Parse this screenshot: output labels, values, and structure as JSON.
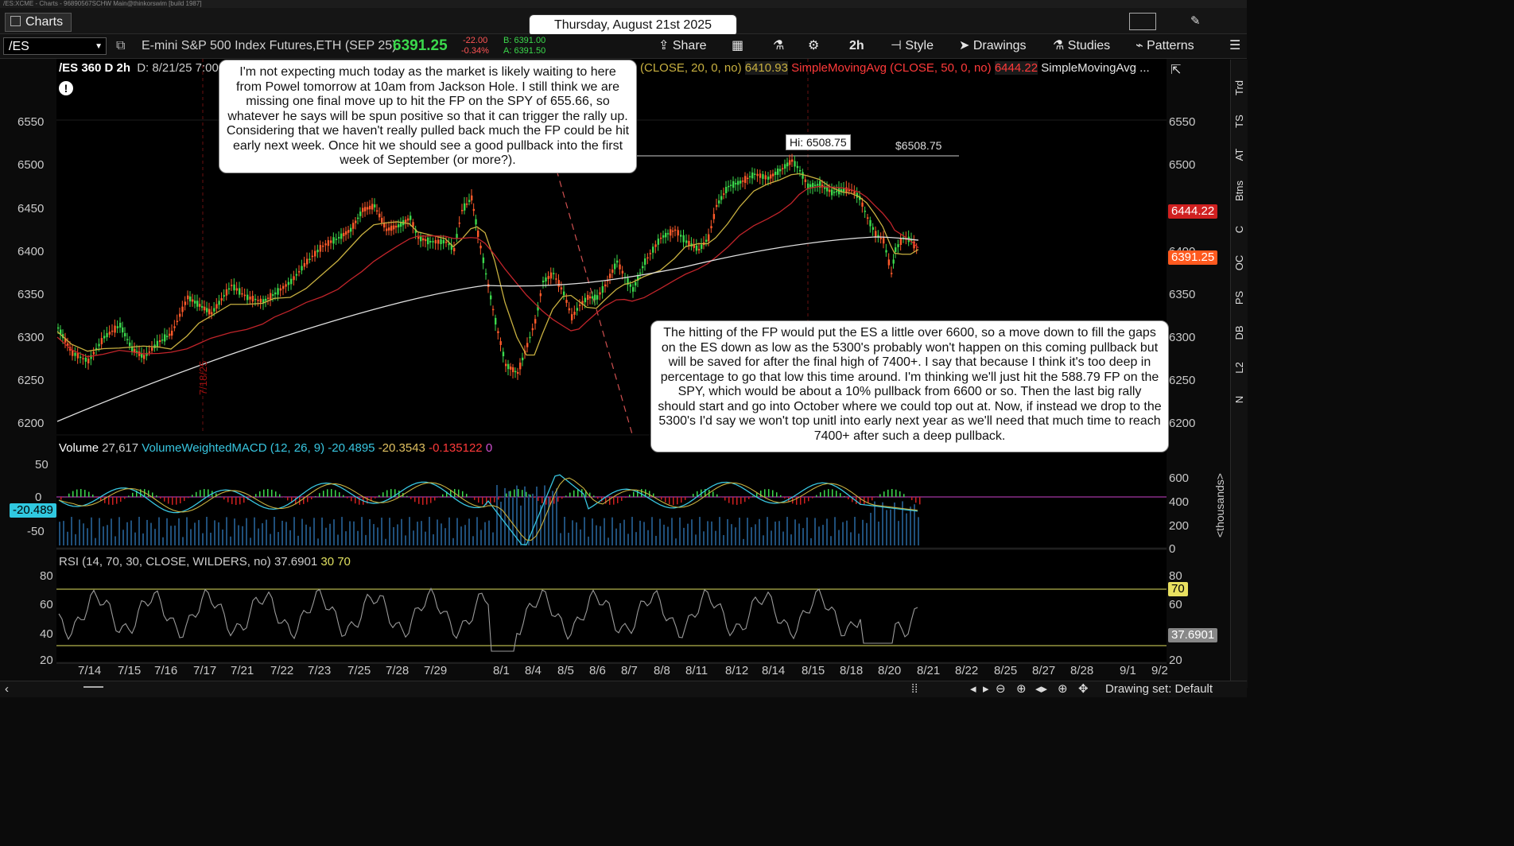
{
  "window": {
    "title": "/ES:XCME - Charts - 96890567SCHW Main@thinkorswim [build 1987]",
    "tab": "Charts"
  },
  "date_banner": "Thursday, August 21st 2025",
  "toolbar": {
    "symbol": "/ES",
    "description": "E-mini S&P 500 Index Futures,ETH (SEP 25)",
    "last": "6391.25",
    "change": "-22.00",
    "change_pct": "-0.34%",
    "bid": "B: 6391.00",
    "ask": "A: 6391.50",
    "share": "Share",
    "timeframe": "2h",
    "style": "Style",
    "drawings": "Drawings",
    "studies": "Studies",
    "patterns": "Patterns"
  },
  "chart_header": {
    "title": "/ES 360 D 2h",
    "date": "D: 8/21/25 7:00",
    "ma1": "(CLOSE, 20, 0, no)",
    "ma1_val": "6410.93",
    "ma2": "SimpleMovingAvg (CLOSE, 50, 0, no)",
    "ma2_val": "6444.22",
    "ma3": "SimpleMovingAvg ..."
  },
  "price_axis": [
    "6550",
    "6500",
    "6450",
    "6400",
    "6350",
    "6300",
    "6250",
    "6200"
  ],
  "price_badges": {
    "ma50": "6444.22",
    "last": "6391.25"
  },
  "hi_label": "Hi: 6508.75",
  "hi_line_label": "$6508.75",
  "vline_label": "7/18/25",
  "volume_header": {
    "label": "Volume",
    "volume": "27,617",
    "study": "VolumeWeightedMACD (12, 26, 9)",
    "v1": "-20.4895",
    "v2": "-20.3543",
    "v3": "-0.135122",
    "v4": "0"
  },
  "macd_axis": [
    "50",
    "0",
    "-50"
  ],
  "macd_badge": "-20.489",
  "volume_axis": [
    "600",
    "400",
    "200",
    "0"
  ],
  "volume_axis_unit": "<thousands>",
  "rsi_header": {
    "study": "RSI (14, 70, 30, CLOSE, WILDERS, no)",
    "value": "37.6901",
    "lo": "30",
    "hi": "70"
  },
  "rsi_axis": [
    "80",
    "60",
    "40",
    "20"
  ],
  "rsi_badges": {
    "ob": "70",
    "val": "37.6901"
  },
  "time_axis": [
    "7/14",
    "7/15",
    "7/16",
    "7/17",
    "7/21",
    "7/22",
    "7/23",
    "7/25",
    "7/28",
    "7/29",
    "8/1",
    "8/4",
    "8/5",
    "8/6",
    "8/7",
    "8/8",
    "8/11",
    "8/12",
    "8/14",
    "8/15",
    "8/18",
    "8/20",
    "8/21",
    "8/22",
    "8/25",
    "8/27",
    "8/28",
    "9/1",
    "9/2"
  ],
  "side_tabs": [
    "Trd",
    "TS",
    "AT",
    "Btns",
    "C",
    "OC",
    "PS",
    "DB",
    "L2",
    "N"
  ],
  "notes": {
    "top": "I'm not expecting much today as the market is likely waiting to here from Powel tomorrow at 10am from Jackson Hole.  I still think we are missing one final move up to hit the FP on the SPY of 655.66, so whatever he says will be spun positive so that it can trigger the rally up.  Considering that we haven't really pulled back much the FP could be hit early next week.  Once hit we should see a good pullback into the first week of September (or more?).",
    "bottom": "The hitting of the FP would put the ES a little over 6600, so a move down to fill the gaps on the ES down as low as the 5300's probably won't happen on this coming pullback but will be saved for after the final high of 7400+.  I say that because I think it's too deep in percentage to go that low this time around.  I'm thinking we'll just hit the 588.79 FP on the SPY, which would be about a 10% pullback from 6600 or so.  Then the last big rally should start and go into October where we could top out at.  Now, if instead we drop to the 5300's I'd say we won't top unitl into early next year as we'll need that much time to reach 7400+ after such a deep pullback."
  },
  "bottom_bar": {
    "drawing_set": "Drawing set: Default"
  },
  "colors": {
    "up": "#3bd94c",
    "down": "#ff5a2a",
    "ma20": "#c8b040",
    "ma50": "#c0242a",
    "ma200": "#e0e0e0",
    "macd": "#38c6e0"
  }
}
